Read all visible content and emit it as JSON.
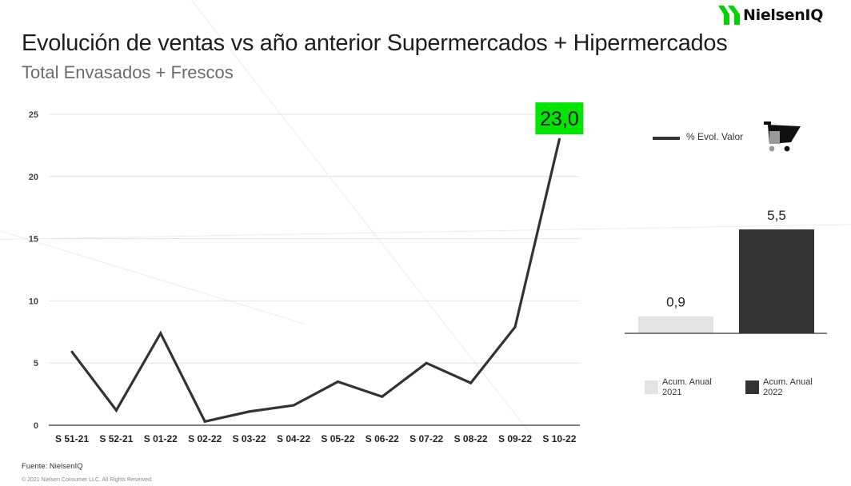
{
  "logo": {
    "text": "NielsenIQ"
  },
  "header": {
    "title": "Evolución de ventas vs año anterior Supermercados + Hipermercados",
    "subtitle": "Total Envasados + Frescos"
  },
  "chart_data": [
    {
      "type": "line",
      "categories": [
        "S 51-21",
        "S 52-21",
        "S 01-22",
        "S 02-22",
        "S 03-22",
        "S 04-22",
        "S 05-22",
        "S 06-22",
        "S 07-22",
        "S 08-22",
        "S 09-22",
        "S 10-22"
      ],
      "series": [
        {
          "name": "% Evol. Valor",
          "values": [
            5.9,
            1.2,
            7.4,
            0.3,
            1.1,
            1.6,
            3.5,
            2.3,
            5.0,
            3.4,
            7.9,
            23.0
          ],
          "color": "#333333"
        }
      ],
      "yticks": [
        0,
        5,
        10,
        15,
        20,
        25
      ],
      "ylim": [
        0,
        25
      ],
      "grid": true,
      "highlight_label": {
        "index": 11,
        "text": "23,0",
        "background": "#00e600"
      }
    },
    {
      "type": "bar",
      "categories": [
        "Acum. Anual 2021",
        "Acum. Anual 2022"
      ],
      "values": [
        0.9,
        5.5
      ],
      "labels": [
        "0,9",
        "5,5"
      ],
      "colors": [
        "#e3e3e3",
        "#333333"
      ]
    }
  ],
  "legend": {
    "line_label": "% Evol. Valor",
    "bars": [
      {
        "line1": "Acum. Anual",
        "line2": "2021",
        "color": "#e3e3e3"
      },
      {
        "line1": "Acum. Anual",
        "line2": "2022",
        "color": "#333333"
      }
    ]
  },
  "icons": {
    "cart": "shopping-cart-icon"
  },
  "footer": {
    "source": "Fuente: NielsenIQ",
    "copyright": "© 2021 Nielsen Consumer LLC. All Rights Reserved."
  },
  "colors": {
    "accent": "#00e600",
    "dark": "#333333",
    "light": "#e3e3e3",
    "brand_green": "#00d400"
  }
}
